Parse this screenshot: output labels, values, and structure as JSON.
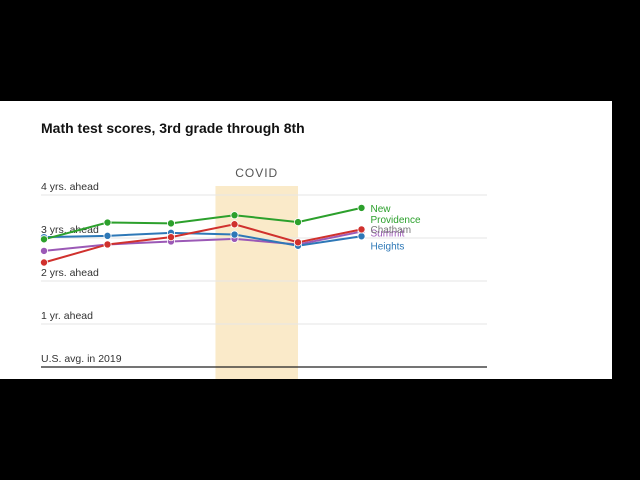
{
  "chart_data": {
    "type": "line",
    "title": "Math test scores, 3rd grade through 8th",
    "x": [
      3,
      4,
      5,
      6,
      7,
      8
    ],
    "xlim": [
      3,
      8.4
    ],
    "ylim": [
      -0.25,
      4.25
    ],
    "y_ticks": [
      {
        "value": 0,
        "label": "U.S. avg. in 2019"
      },
      {
        "value": 1,
        "label": "1 yr. ahead"
      },
      {
        "value": 2,
        "label": "2 yrs. ahead"
      },
      {
        "value": 3,
        "label": "3 yrs. ahead"
      },
      {
        "value": 4,
        "label": "4 yrs. ahead"
      }
    ],
    "shaded_region": {
      "x_start": 5.7,
      "x_end": 7,
      "label": "COVID",
      "color": "#faeac9"
    },
    "grid": true,
    "series": [
      {
        "name": "Summit",
        "color": "#9b59b6",
        "values": [
          2.7,
          2.85,
          2.92,
          2.98,
          2.85,
          3.15
        ]
      },
      {
        "name": "Heights",
        "color": "#2e78b7",
        "values": [
          3.02,
          3.05,
          3.12,
          3.08,
          2.82,
          3.04
        ]
      },
      {
        "name": "Chatham",
        "color": "#d0312d",
        "values": [
          2.43,
          2.85,
          3.02,
          3.32,
          2.9,
          3.2
        ]
      },
      {
        "name": "New Providence",
        "color": "#2ca02c",
        "values": [
          2.97,
          3.36,
          3.34,
          3.53,
          3.37,
          3.7
        ]
      }
    ],
    "end_labels": [
      {
        "lines": [
          "Summit"
        ],
        "color": "#9b59b6",
        "y": 3.03
      },
      {
        "lines": [
          "Heights"
        ],
        "color": "#2e78b7",
        "y": 2.73
      },
      {
        "lines": [
          "Chatham"
        ],
        "color": "#7a7a7a",
        "y": 3.12
      },
      {
        "lines": [
          "New",
          "Providence"
        ],
        "color": "#2ca02c",
        "y": 3.6
      }
    ]
  }
}
